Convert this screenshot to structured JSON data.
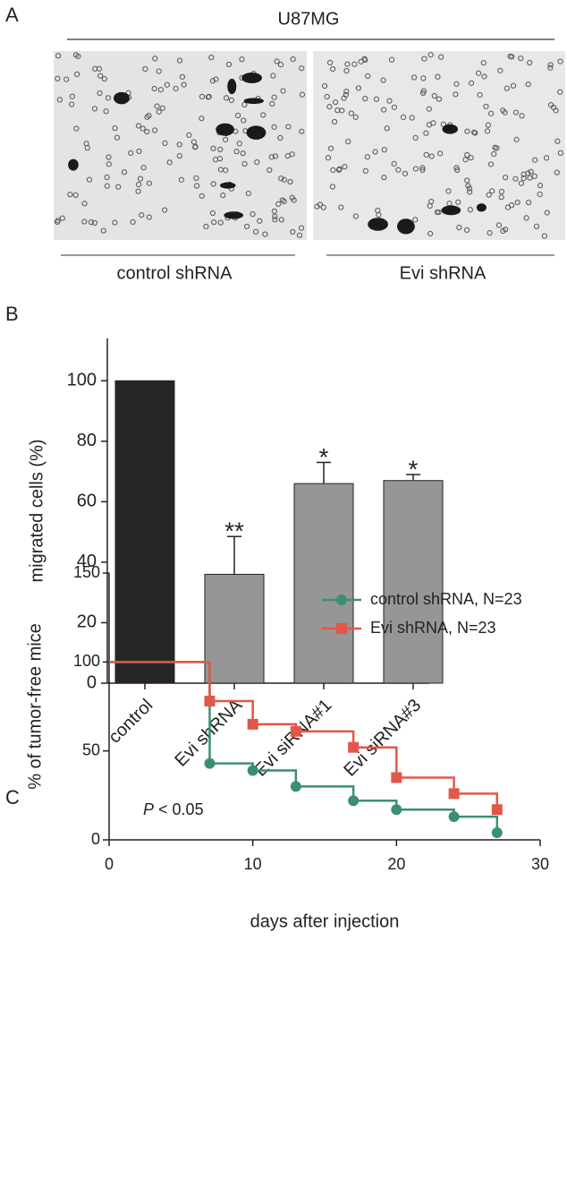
{
  "panel_a": {
    "label": "A",
    "title": "U87MG",
    "images": [
      "control shRNA",
      "Evi shRNA"
    ]
  },
  "panel_b": {
    "label": "B"
  },
  "panel_c": {
    "label": "C",
    "p_symbol": "P",
    "p_text": "< 0.05"
  },
  "chart_data": [
    {
      "type": "bar",
      "y_label": "migrated cells (%)",
      "categories": [
        "control",
        "Evi shRNA",
        "Evi siRNA#1",
        "Evi siRNA#3"
      ],
      "values": [
        100,
        36,
        66,
        67
      ],
      "errors": [
        null,
        12.5,
        7,
        2
      ],
      "annotations": [
        null,
        "**",
        "*",
        "*"
      ],
      "colors": [
        "#262626",
        "#969696",
        "#969696",
        "#969696"
      ],
      "ylim": [
        0,
        114
      ],
      "yticks": [
        0,
        20,
        40,
        60,
        80,
        100
      ]
    },
    {
      "type": "line",
      "step": true,
      "x_label": "days after injection",
      "y_label": "% of tumor-free mice",
      "series": [
        {
          "name": "control shRNA, N=23",
          "color": "#3a8f74",
          "marker": "circle",
          "x": [
            0,
            7,
            10,
            13,
            17,
            20,
            24,
            27
          ],
          "values": [
            100,
            43,
            39,
            30,
            22,
            17,
            13,
            4
          ]
        },
        {
          "name": "Evi shRNA, N=23",
          "color": "#e0584a",
          "marker": "square",
          "x": [
            0,
            7,
            10,
            13,
            17,
            20,
            24,
            27
          ],
          "values": [
            100,
            78,
            65,
            61,
            52,
            35,
            26,
            17
          ]
        }
      ],
      "xlim": [
        0,
        30
      ],
      "xticks": [
        0,
        10,
        20,
        30
      ],
      "ylim": [
        0,
        150
      ],
      "yticks": [
        0,
        50,
        100,
        150
      ],
      "legend": "upper right"
    }
  ]
}
